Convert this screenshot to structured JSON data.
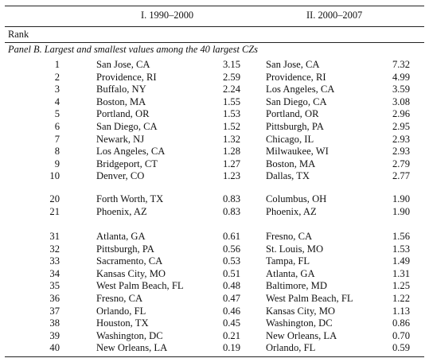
{
  "headers": {
    "col1": "I. 1990–2000",
    "col2": "II. 2000–2007",
    "rank": "Rank"
  },
  "panel_title": "Panel B. Largest and smallest values among the 40 largest CZs",
  "rows": [
    {
      "rank": "1",
      "city1": "San Jose, CA",
      "v1": "3.15",
      "city2": "San Jose, CA",
      "v2": "7.32"
    },
    {
      "rank": "2",
      "city1": "Providence, RI",
      "v1": "2.59",
      "city2": "Providence, RI",
      "v2": "4.99"
    },
    {
      "rank": "3",
      "city1": "Buffalo, NY",
      "v1": "2.24",
      "city2": "Los Angeles, CA",
      "v2": "3.59"
    },
    {
      "rank": "4",
      "city1": "Boston, MA",
      "v1": "1.55",
      "city2": "San Diego, CA",
      "v2": "3.08"
    },
    {
      "rank": "5",
      "city1": "Portland, OR",
      "v1": "1.53",
      "city2": "Portland, OR",
      "v2": "2.96"
    },
    {
      "rank": "6",
      "city1": "San Diego, CA",
      "v1": "1.52",
      "city2": "Pittsburgh, PA",
      "v2": "2.95"
    },
    {
      "rank": "7",
      "city1": "Newark, NJ",
      "v1": "1.32",
      "city2": "Chicago, IL",
      "v2": "2.93"
    },
    {
      "rank": "8",
      "city1": "Los Angeles, CA",
      "v1": "1.28",
      "city2": "Milwaukee, WI",
      "v2": "2.93"
    },
    {
      "rank": "9",
      "city1": "Bridgeport, CT",
      "v1": "1.27",
      "city2": "Boston, MA",
      "v2": "2.79"
    },
    {
      "rank": "10",
      "city1": "Denver, CO",
      "v1": "1.23",
      "city2": "Dallas, TX",
      "v2": "2.77"
    },
    {
      "rank": "20",
      "city1": "Forth Worth, TX",
      "v1": "0.83",
      "city2": "Columbus, OH",
      "v2": "1.90"
    },
    {
      "rank": "21",
      "city1": "Phoenix, AZ",
      "v1": "0.83",
      "city2": "Phoenix, AZ",
      "v2": "1.90"
    },
    {
      "rank": "31",
      "city1": "Atlanta, GA",
      "v1": "0.61",
      "city2": "Fresno, CA",
      "v2": "1.56"
    },
    {
      "rank": "32",
      "city1": "Pittsburgh, PA",
      "v1": "0.56",
      "city2": "St. Louis, MO",
      "v2": "1.53"
    },
    {
      "rank": "33",
      "city1": "Sacramento, CA",
      "v1": "0.53",
      "city2": "Tampa, FL",
      "v2": "1.49"
    },
    {
      "rank": "34",
      "city1": "Kansas City, MO",
      "v1": "0.51",
      "city2": "Atlanta, GA",
      "v2": "1.31"
    },
    {
      "rank": "35",
      "city1": "West Palm Beach, FL",
      "v1": "0.48",
      "city2": "Baltimore, MD",
      "v2": "1.25"
    },
    {
      "rank": "36",
      "city1": "Fresno, CA",
      "v1": "0.47",
      "city2": "West Palm Beach, FL",
      "v2": "1.22"
    },
    {
      "rank": "37",
      "city1": "Orlando, FL",
      "v1": "0.46",
      "city2": "Kansas City, MO",
      "v2": "1.13"
    },
    {
      "rank": "38",
      "city1": "Houston, TX",
      "v1": "0.45",
      "city2": "Washington, DC",
      "v2": "0.86"
    },
    {
      "rank": "39",
      "city1": "Washington, DC",
      "v1": "0.21",
      "city2": "New Orleans, LA",
      "v2": "0.70"
    },
    {
      "rank": "40",
      "city1": "New Orleans, LA",
      "v1": "0.19",
      "city2": "Orlando, FL",
      "v2": "0.59"
    }
  ]
}
